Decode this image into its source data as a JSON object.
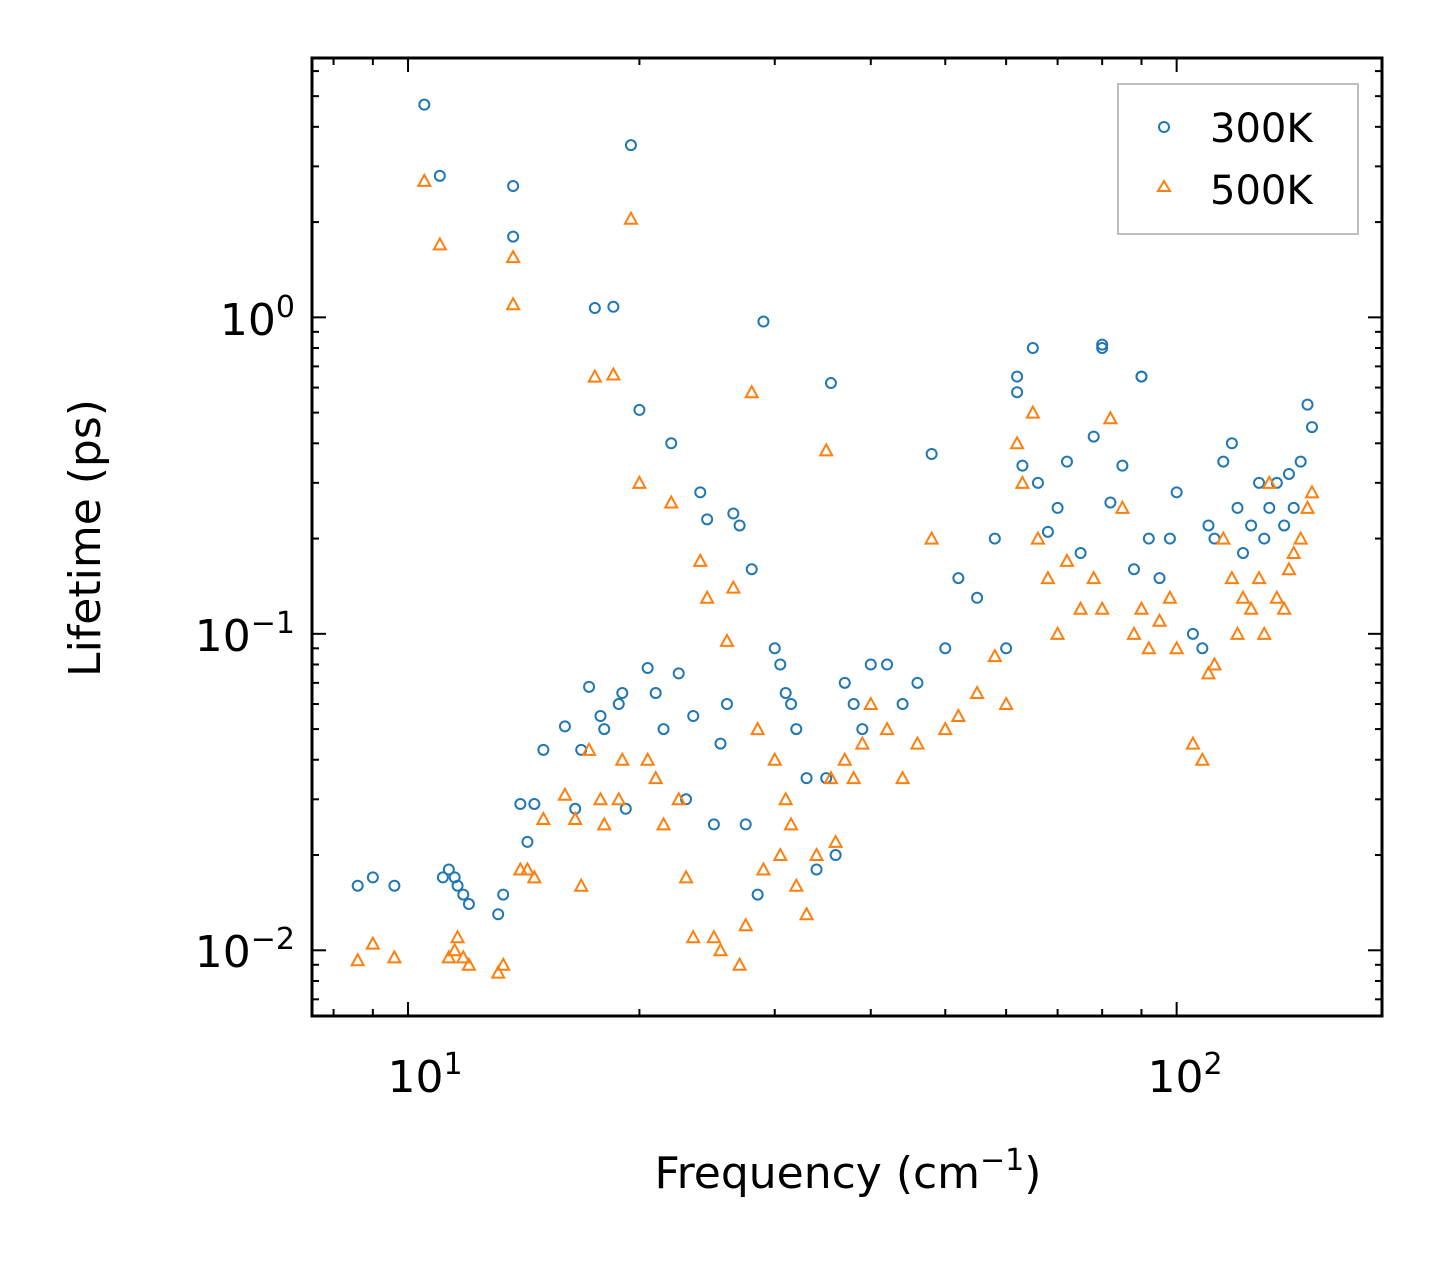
{
  "chart_data": {
    "type": "scatter",
    "title": "",
    "xlabel": "Frequency (cm",
    "xlabel_sup": "−1",
    "xlabel_suffix": ")",
    "ylabel": "Lifetime (ps)",
    "xscale": "log",
    "yscale": "log",
    "xlim": [
      7.5,
      185
    ],
    "ylim": [
      0.0062,
      6.6
    ],
    "x_ticks": [
      {
        "value": 10,
        "base": "10",
        "exp": "1"
      },
      {
        "value": 100,
        "base": "10",
        "exp": "2"
      }
    ],
    "y_ticks": [
      {
        "value": 1,
        "base": "10",
        "exp": "0"
      },
      {
        "value": 0.1,
        "base": "10",
        "exp": "−1"
      },
      {
        "value": 0.01,
        "base": "10",
        "exp": "−2"
      }
    ],
    "legend_position": "top-right",
    "series": [
      {
        "name": "300K",
        "marker": "circle",
        "color": "#1f77b4",
        "x": [
          8.6,
          9.0,
          9.6,
          10.5,
          11.0,
          11.1,
          11.3,
          11.5,
          11.6,
          11.8,
          12.0,
          13.1,
          13.3,
          13.7,
          13.7,
          14.0,
          14.3,
          14.6,
          15.0,
          16.0,
          16.5,
          16.8,
          17.2,
          17.5,
          17.8,
          18.0,
          18.5,
          18.8,
          19.0,
          19.2,
          19.5,
          20.0,
          20.5,
          21.0,
          21.5,
          22.0,
          22.5,
          23.0,
          23.5,
          24.0,
          24.5,
          25.0,
          25.5,
          26.0,
          26.5,
          27.0,
          27.5,
          28.0,
          28.5,
          29.0,
          30.0,
          30.5,
          31.0,
          31.5,
          32.0,
          33.0,
          34.0,
          35.0,
          35.5,
          36.0,
          37.0,
          38.0,
          39.0,
          40.0,
          42.0,
          44.0,
          46.0,
          48.0,
          50.0,
          52.0,
          55.0,
          58.0,
          60.0,
          62.0,
          62.0,
          63.0,
          65.0,
          66.0,
          68.0,
          70.0,
          72.0,
          75.0,
          78.0,
          80.0,
          80.0,
          82.0,
          85.0,
          88.0,
          90.0,
          90.0,
          92.0,
          95.0,
          98.0,
          100.0,
          105.0,
          108.0,
          110.0,
          112.0,
          115.0,
          118.0,
          120.0,
          122.0,
          125.0,
          128.0,
          130.0,
          132.0,
          135.0,
          138.0,
          140.0,
          142.0,
          145.0,
          148.0,
          150.0
        ],
        "y": [
          0.016,
          0.017,
          0.016,
          4.7,
          2.8,
          0.017,
          0.018,
          0.017,
          0.016,
          0.015,
          0.014,
          0.013,
          0.015,
          2.6,
          1.8,
          0.029,
          0.022,
          0.029,
          0.043,
          0.051,
          0.028,
          0.043,
          0.068,
          1.07,
          0.055,
          0.05,
          1.08,
          0.06,
          0.065,
          0.028,
          3.5,
          0.51,
          0.078,
          0.065,
          0.05,
          0.4,
          0.075,
          0.03,
          0.055,
          0.28,
          0.23,
          0.025,
          0.045,
          0.06,
          0.24,
          0.22,
          0.025,
          0.16,
          0.015,
          0.97,
          0.09,
          0.08,
          0.065,
          0.06,
          0.05,
          0.035,
          0.018,
          0.035,
          0.62,
          0.02,
          0.07,
          0.06,
          0.05,
          0.08,
          0.08,
          0.06,
          0.07,
          0.37,
          0.09,
          0.15,
          0.13,
          0.2,
          0.09,
          0.58,
          0.65,
          0.34,
          0.8,
          0.3,
          0.21,
          0.25,
          0.35,
          0.18,
          0.42,
          0.82,
          0.8,
          0.26,
          0.34,
          0.16,
          0.65,
          0.65,
          0.2,
          0.15,
          0.2,
          0.28,
          0.1,
          0.09,
          0.22,
          0.2,
          0.35,
          0.4,
          0.25,
          0.18,
          0.22,
          0.3,
          0.2,
          0.25,
          0.3,
          0.22,
          0.32,
          0.25,
          0.35,
          0.53,
          0.45
        ]
      },
      {
        "name": "500K",
        "marker": "triangle",
        "color": "#ff7f0e",
        "x": [
          8.6,
          9.0,
          9.6,
          10.5,
          11.0,
          11.3,
          11.5,
          11.6,
          11.8,
          12.0,
          13.1,
          13.3,
          13.7,
          13.7,
          14.0,
          14.3,
          14.6,
          15.0,
          16.0,
          16.5,
          16.8,
          17.2,
          17.5,
          17.8,
          18.0,
          18.5,
          18.8,
          19.0,
          19.5,
          20.0,
          20.5,
          21.0,
          21.5,
          22.0,
          22.5,
          23.0,
          23.5,
          24.0,
          24.5,
          25.0,
          25.5,
          26.0,
          26.5,
          27.0,
          27.5,
          28.0,
          28.5,
          29.0,
          30.0,
          30.5,
          31.0,
          31.5,
          32.0,
          33.0,
          34.0,
          35.0,
          35.5,
          36.0,
          37.0,
          38.0,
          39.0,
          40.0,
          42.0,
          44.0,
          46.0,
          48.0,
          50.0,
          52.0,
          55.0,
          58.0,
          60.0,
          62.0,
          63.0,
          65.0,
          66.0,
          68.0,
          70.0,
          72.0,
          75.0,
          78.0,
          80.0,
          82.0,
          85.0,
          88.0,
          90.0,
          92.0,
          95.0,
          98.0,
          100.0,
          105.0,
          108.0,
          110.0,
          112.0,
          115.0,
          118.0,
          120.0,
          122.0,
          125.0,
          128.0,
          130.0,
          132.0,
          135.0,
          138.0,
          140.0,
          142.0,
          145.0,
          148.0,
          150.0
        ],
        "y": [
          0.0093,
          0.0105,
          0.0095,
          2.7,
          1.7,
          0.0095,
          0.01,
          0.011,
          0.0095,
          0.009,
          0.0085,
          0.009,
          1.55,
          1.1,
          0.018,
          0.018,
          0.017,
          0.026,
          0.031,
          0.026,
          0.016,
          0.043,
          0.65,
          0.03,
          0.025,
          0.66,
          0.03,
          0.04,
          2.05,
          0.3,
          0.04,
          0.035,
          0.025,
          0.26,
          0.03,
          0.017,
          0.011,
          0.17,
          0.13,
          0.011,
          0.01,
          0.095,
          0.14,
          0.009,
          0.012,
          0.58,
          0.05,
          0.018,
          0.04,
          0.02,
          0.03,
          0.025,
          0.016,
          0.013,
          0.02,
          0.38,
          0.035,
          0.022,
          0.04,
          0.035,
          0.045,
          0.06,
          0.05,
          0.035,
          0.045,
          0.2,
          0.05,
          0.055,
          0.065,
          0.085,
          0.06,
          0.4,
          0.3,
          0.5,
          0.2,
          0.15,
          0.1,
          0.17,
          0.12,
          0.15,
          0.12,
          0.48,
          0.25,
          0.1,
          0.12,
          0.09,
          0.11,
          0.13,
          0.09,
          0.045,
          0.04,
          0.075,
          0.08,
          0.2,
          0.15,
          0.1,
          0.13,
          0.12,
          0.15,
          0.1,
          0.3,
          0.13,
          0.12,
          0.16,
          0.18,
          0.2,
          0.25,
          0.28
        ]
      }
    ]
  }
}
